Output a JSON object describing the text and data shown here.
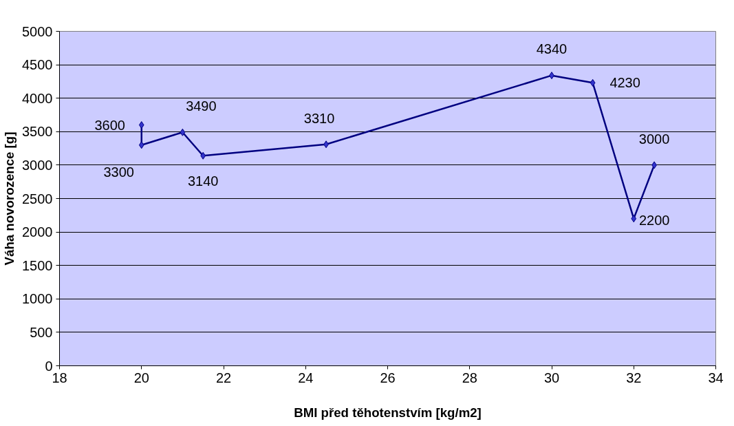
{
  "chart_data": {
    "type": "line",
    "xlabel": "BMI před těhotenstvím [kg/m2]",
    "ylabel": "Váha novorozence [g]",
    "x": [
      20,
      20,
      21,
      21.5,
      24.5,
      30,
      31,
      32,
      32.5
    ],
    "series": [
      {
        "color": "#000080",
        "values": [
          3600,
          3300,
          3490,
          3140,
          3310,
          4340,
          4230,
          2200,
          3000
        ]
      }
    ],
    "xlim": [
      18,
      34
    ],
    "xticks": [
      18,
      20,
      22,
      24,
      26,
      28,
      30,
      32,
      34
    ],
    "ylim": [
      0,
      5000
    ],
    "yticks": [
      0,
      500,
      1000,
      1500,
      2000,
      2500,
      3000,
      3500,
      4000,
      4500,
      5000
    ],
    "grid": "y",
    "marker": "diamond",
    "line_style": "solid",
    "data_labels": true
  }
}
